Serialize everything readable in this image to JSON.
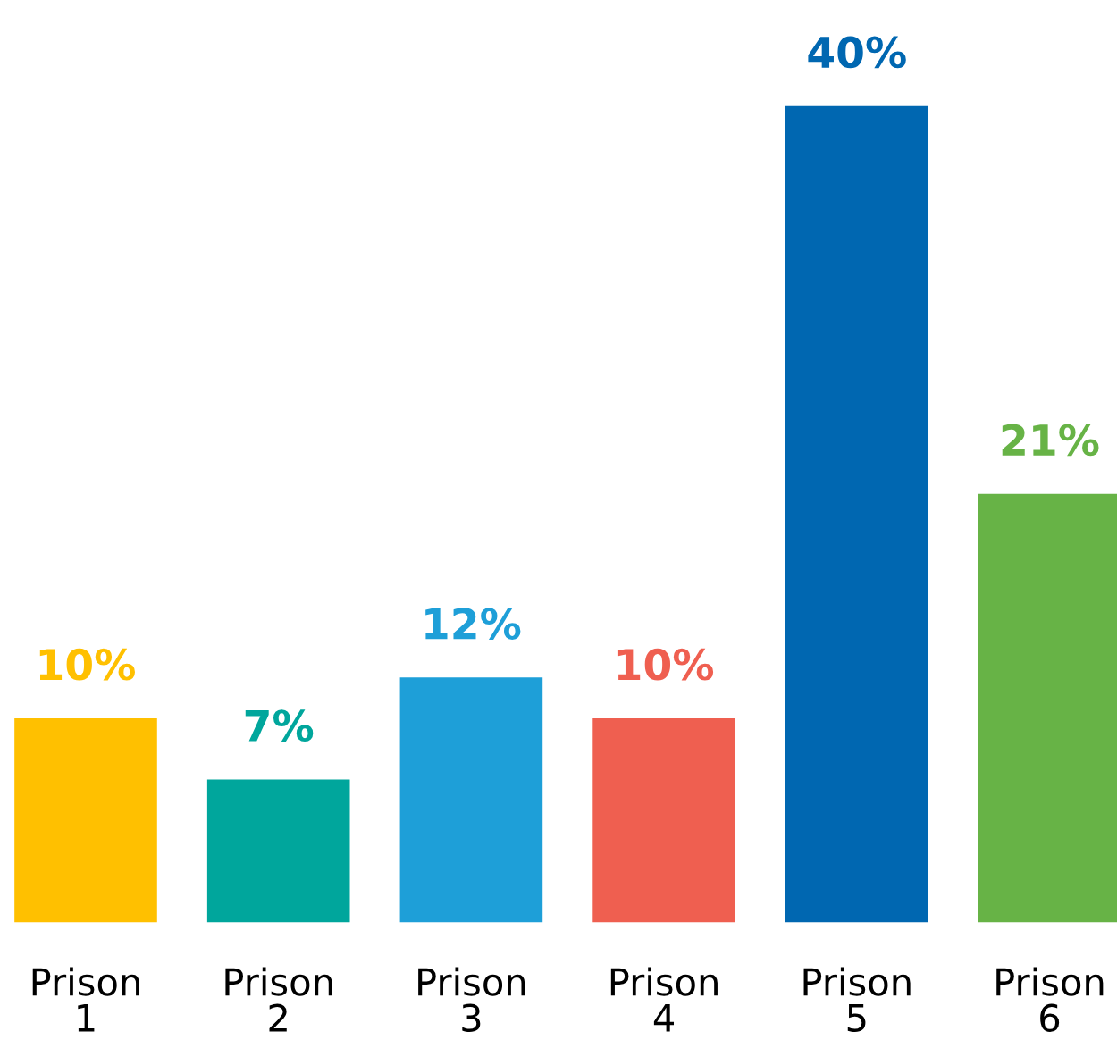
{
  "chart_data": {
    "type": "bar",
    "categories": [
      "Prison 1",
      "Prison 2",
      "Prison 3",
      "Prison 4",
      "Prison 5",
      "Prison 6"
    ],
    "values": [
      10,
      7,
      12,
      10,
      40,
      21
    ],
    "colors": [
      "#ffc000",
      "#00a69c",
      "#1e9fd8",
      "#ef5f50",
      "#0067b1",
      "#67b346"
    ],
    "value_labels": [
      "10%",
      "7%",
      "12%",
      "10%",
      "40%",
      "21%"
    ],
    "grid": false,
    "legend": false
  }
}
